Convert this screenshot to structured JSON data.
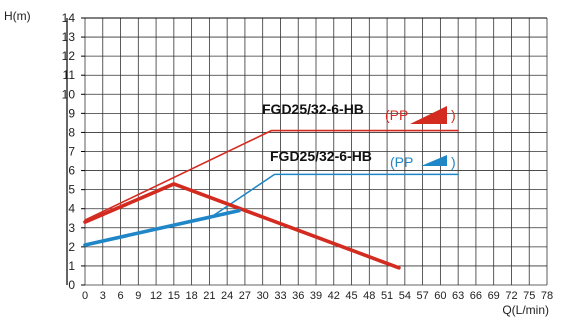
{
  "chart_data": {
    "type": "line",
    "ylabel": "H(m)",
    "xlabel": "Q(L/min)",
    "xlim": [
      0,
      78
    ],
    "ylim": [
      0,
      14
    ],
    "x_ticks": [
      0,
      3,
      6,
      9,
      12,
      15,
      18,
      21,
      24,
      27,
      30,
      33,
      36,
      39,
      42,
      45,
      48,
      51,
      54,
      57,
      60,
      63,
      66,
      69,
      72,
      75,
      78
    ],
    "y_ticks": [
      0,
      1,
      2,
      3,
      4,
      5,
      6,
      7,
      8,
      9,
      10,
      11,
      12,
      13,
      14
    ],
    "grid": true,
    "colors": {
      "red": "#d42b20",
      "blue": "#1f86c7",
      "grid": "#333333"
    },
    "series": [
      {
        "color": "red",
        "style": "thin",
        "points": [
          [
            0,
            3.4
          ],
          [
            31.5,
            8.1
          ],
          [
            63,
            8.1
          ]
        ]
      },
      {
        "color": "blue",
        "style": "thin",
        "points": [
          [
            0,
            2.1
          ],
          [
            21,
            3.5
          ],
          [
            32,
            5.8
          ],
          [
            63,
            5.8
          ]
        ]
      },
      {
        "color": "red",
        "style": "thick",
        "points": [
          [
            0,
            3.3
          ],
          [
            15,
            5.3
          ],
          [
            53,
            0.9
          ]
        ]
      },
      {
        "color": "blue",
        "style": "thick",
        "points": [
          [
            0,
            2.1
          ],
          [
            26,
            3.9
          ]
        ]
      }
    ],
    "annotations": [
      {
        "text": "FGD25/32-6-HB",
        "mode": "PP",
        "mode_color": "red",
        "icon": "red-ramp-icon"
      },
      {
        "text": "FGD25/32-6-HB",
        "mode": "PP",
        "mode_color": "blue",
        "icon": "blue-ramp-icon"
      }
    ]
  }
}
